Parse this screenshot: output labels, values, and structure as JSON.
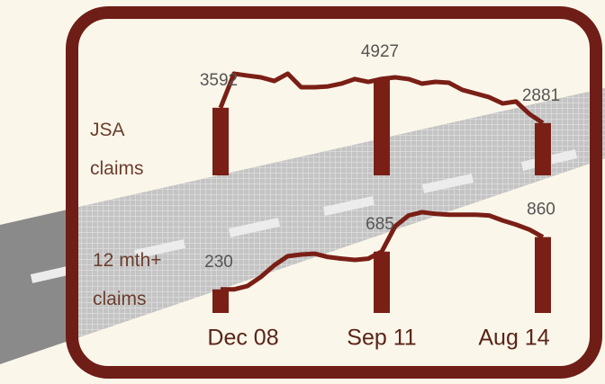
{
  "chart_data": {
    "type": "line",
    "categories": [
      "Dec 08",
      null,
      null,
      null,
      null,
      null,
      null,
      null,
      null,
      null,
      null,
      null,
      "Sep 11",
      null,
      null,
      null,
      null,
      null,
      null,
      null,
      null,
      null,
      null,
      null,
      "Aug 14"
    ],
    "series": [
      {
        "name": "JSA claims",
        "color": "#7a1f16",
        "values": [
          3592,
          5170,
          5080,
          5000,
          4830,
          5170,
          4540,
          4540,
          4580,
          4710,
          4920,
          4790,
          4927,
          5000,
          4920,
          4710,
          4790,
          4750,
          4420,
          4250,
          4080,
          3790,
          3880,
          3300,
          2881
        ]
      },
      {
        "name": "12 mth+ claims",
        "color": "#7a1f16",
        "axis": "y2",
        "values": [
          230,
          230,
          270,
          380,
          520,
          630,
          650,
          660,
          620,
          600,
          585,
          600,
          685,
          990,
          1120,
          1160,
          1140,
          1130,
          1130,
          1130,
          1120,
          1060,
          1010,
          950,
          860
        ]
      }
    ],
    "ylim": [
      0,
      6000
    ],
    "y2lim": [
      0,
      1300
    ]
  }
}
